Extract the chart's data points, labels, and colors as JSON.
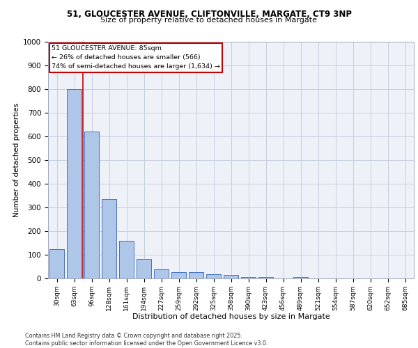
{
  "title1": "51, GLOUCESTER AVENUE, CLIFTONVILLE, MARGATE, CT9 3NP",
  "title2": "Size of property relative to detached houses in Margate",
  "xlabel": "Distribution of detached houses by size in Margate",
  "ylabel": "Number of detached properties",
  "bar_labels": [
    "30sqm",
    "63sqm",
    "96sqm",
    "128sqm",
    "161sqm",
    "194sqm",
    "227sqm",
    "259sqm",
    "292sqm",
    "325sqm",
    "358sqm",
    "390sqm",
    "423sqm",
    "456sqm",
    "489sqm",
    "521sqm",
    "554sqm",
    "587sqm",
    "620sqm",
    "652sqm",
    "685sqm"
  ],
  "bar_values": [
    125,
    800,
    620,
    335,
    160,
    82,
    38,
    27,
    26,
    18,
    14,
    7,
    5,
    0,
    7,
    0,
    0,
    0,
    0,
    0,
    0
  ],
  "bar_color": "#aec6e8",
  "bar_edge_color": "#4472c4",
  "vline_color": "#cc0000",
  "vline_x": 1.5,
  "annotation_lines": [
    "51 GLOUCESTER AVENUE: 85sqm",
    "← 26% of detached houses are smaller (566)",
    "74% of semi-detached houses are larger (1,634) →"
  ],
  "annotation_box_color": "#ffffff",
  "annotation_box_edge": "#cc0000",
  "ylim": [
    0,
    1000
  ],
  "yticks": [
    0,
    100,
    200,
    300,
    400,
    500,
    600,
    700,
    800,
    900,
    1000
  ],
  "footer_text": "Contains HM Land Registry data © Crown copyright and database right 2025.\nContains public sector information licensed under the Open Government Licence v3.0.",
  "plot_bg_color": "#eef2f8"
}
